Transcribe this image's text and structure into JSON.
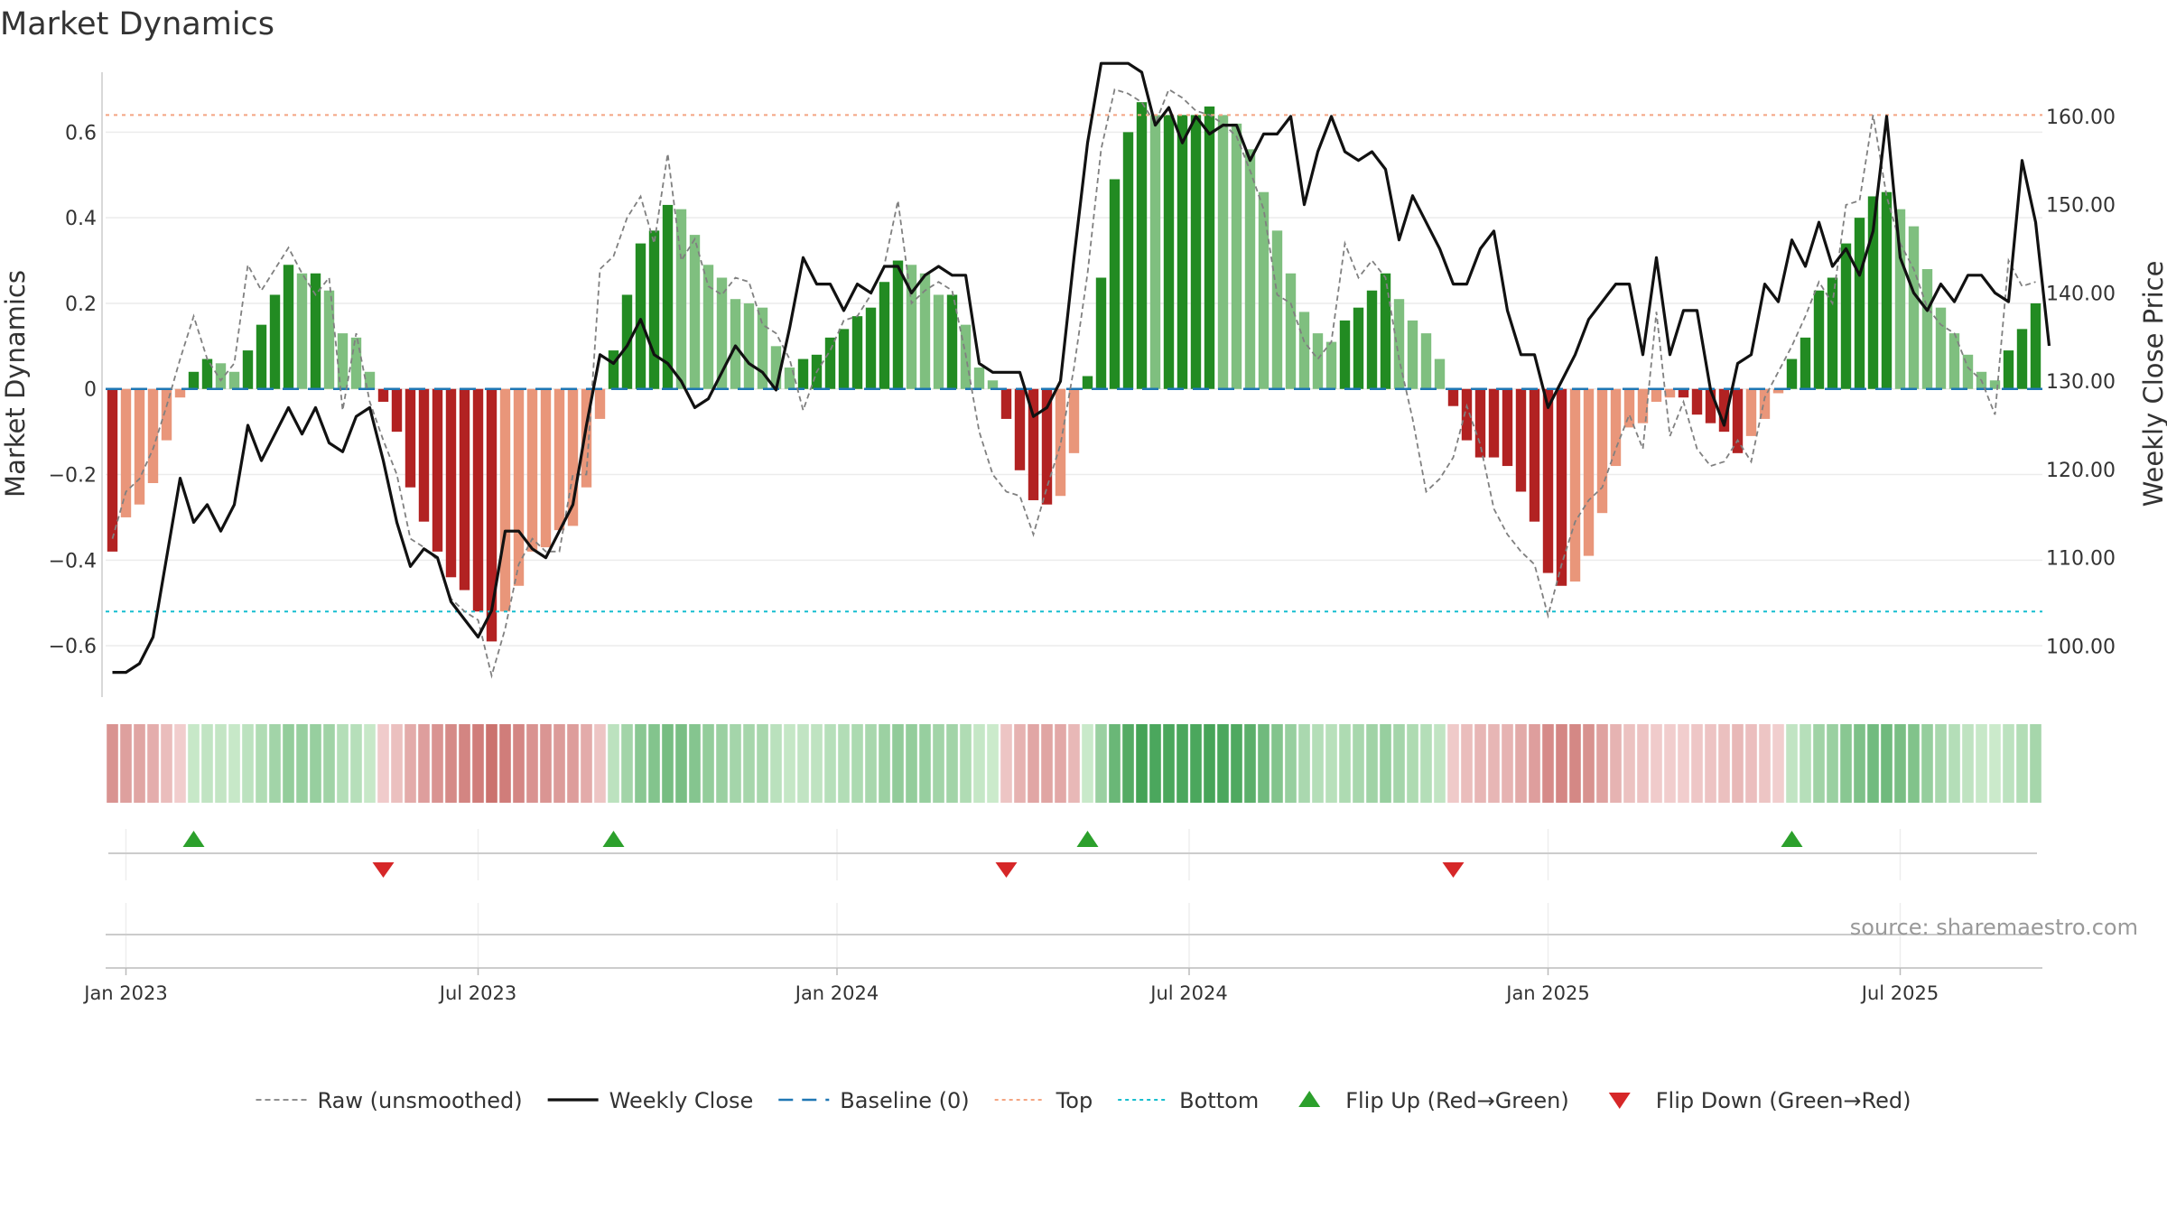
{
  "chart_data": {
    "title": "Market Dynamics",
    "type": "bar",
    "ylabel_left": "Market Dynamics",
    "ylabel_right": "Weekly Close Price",
    "ylim_left": [
      -0.72,
      0.74
    ],
    "ylim_right": [
      94.2,
      165
    ],
    "yticks_left": [
      0.6,
      0.4,
      0.2,
      0,
      -0.2,
      -0.4,
      -0.6
    ],
    "ytick_labels_left": [
      "0.6",
      "0.4",
      "0.2",
      "0",
      "−0.2",
      "−0.4",
      "−0.6"
    ],
    "yticks_right": [
      160,
      150,
      140,
      130,
      120,
      110,
      100
    ],
    "ytick_labels_right": [
      "160.00",
      "150.00",
      "140.00",
      "130.00",
      "120.00",
      "110.00",
      "100.00"
    ],
    "xticks": [
      {
        "label": "Jan 2023",
        "week": 1.5
      },
      {
        "label": "Jul 2023",
        "week": 27.5
      },
      {
        "label": "Jan 2024",
        "week": 54
      },
      {
        "label": "Jul 2024",
        "week": 80
      },
      {
        "label": "Jan 2025",
        "week": 106.5
      },
      {
        "label": "Jul 2025",
        "week": 132.5
      }
    ],
    "x_start": "Dec 2022",
    "top_level": 0.64,
    "bottom_level": -0.52,
    "baseline": 0,
    "grid": true,
    "legend_position": "bottom-center",
    "source_label": "source: sharemaestro.com",
    "smoothed": [
      -0.38,
      -0.3,
      -0.27,
      -0.22,
      -0.12,
      -0.02,
      0.04,
      0.07,
      0.06,
      0.04,
      0.09,
      0.15,
      0.22,
      0.29,
      0.27,
      0.27,
      0.23,
      0.13,
      0.12,
      0.04,
      -0.03,
      -0.1,
      -0.23,
      -0.31,
      -0.38,
      -0.44,
      -0.47,
      -0.52,
      -0.59,
      -0.52,
      -0.46,
      -0.38,
      -0.37,
      -0.33,
      -0.32,
      -0.23,
      -0.07,
      0.09,
      0.22,
      0.34,
      0.37,
      0.43,
      0.42,
      0.36,
      0.29,
      0.26,
      0.21,
      0.2,
      0.19,
      0.1,
      0.05,
      0.07,
      0.08,
      0.12,
      0.14,
      0.17,
      0.19,
      0.25,
      0.3,
      0.29,
      0.27,
      0.22,
      0.22,
      0.15,
      0.05,
      0.02,
      -0.07,
      -0.19,
      -0.26,
      -0.27,
      -0.25,
      -0.15,
      0.03,
      0.26,
      0.49,
      0.6,
      0.67,
      0.64,
      0.64,
      0.64,
      0.64,
      0.66,
      0.64,
      0.62,
      0.56,
      0.46,
      0.37,
      0.27,
      0.18,
      0.13,
      0.11,
      0.16,
      0.19,
      0.23,
      0.27,
      0.21,
      0.16,
      0.13,
      0.07,
      -0.04,
      -0.12,
      -0.16,
      -0.16,
      -0.18,
      -0.24,
      -0.31,
      -0.43,
      -0.46,
      -0.45,
      -0.39,
      -0.29,
      -0.18,
      -0.09,
      -0.08,
      -0.03,
      -0.02,
      -0.02,
      -0.06,
      -0.08,
      -0.1,
      -0.15,
      -0.11,
      -0.07,
      -0.01,
      0.07,
      0.12,
      0.23,
      0.26,
      0.34,
      0.4,
      0.45,
      0.46,
      0.42,
      0.38,
      0.28,
      0.19,
      0.13,
      0.08,
      0.04,
      0.02,
      0.09,
      0.14,
      0.2
    ],
    "raw": [
      -0.35,
      -0.24,
      -0.21,
      -0.14,
      -0.04,
      0.07,
      0.17,
      0.07,
      0.02,
      0.06,
      0.29,
      0.23,
      0.28,
      0.33,
      0.27,
      0.22,
      0.26,
      -0.05,
      0.13,
      -0.03,
      -0.12,
      -0.2,
      -0.35,
      -0.37,
      -0.4,
      -0.49,
      -0.52,
      -0.54,
      -0.67,
      -0.56,
      -0.41,
      -0.35,
      -0.38,
      -0.38,
      -0.2,
      -0.2,
      0.28,
      0.31,
      0.4,
      0.45,
      0.34,
      0.55,
      0.3,
      0.35,
      0.24,
      0.22,
      0.26,
      0.25,
      0.15,
      0.13,
      0.07,
      -0.05,
      0.04,
      0.09,
      0.16,
      0.17,
      0.22,
      0.29,
      0.44,
      0.2,
      0.23,
      0.25,
      0.23,
      0.08,
      -0.1,
      -0.2,
      -0.24,
      -0.25,
      -0.34,
      -0.23,
      -0.13,
      0.05,
      0.27,
      0.56,
      0.7,
      0.69,
      0.67,
      0.62,
      0.7,
      0.68,
      0.65,
      0.64,
      0.62,
      0.59,
      0.51,
      0.42,
      0.22,
      0.2,
      0.11,
      0.07,
      0.11,
      0.34,
      0.26,
      0.3,
      0.26,
      0.07,
      -0.07,
      -0.24,
      -0.21,
      -0.16,
      -0.04,
      -0.13,
      -0.28,
      -0.34,
      -0.38,
      -0.41,
      -0.53,
      -0.41,
      -0.31,
      -0.26,
      -0.23,
      -0.14,
      -0.06,
      -0.14,
      0.18,
      -0.11,
      -0.03,
      -0.14,
      -0.18,
      -0.17,
      -0.12,
      -0.17,
      -0.02,
      0.04,
      0.1,
      0.17,
      0.25,
      0.2,
      0.43,
      0.44,
      0.64,
      0.45,
      0.34,
      0.28,
      0.19,
      0.15,
      0.13,
      0.05,
      0.02,
      -0.06,
      0.3,
      0.24,
      0.25
    ],
    "close": [
      97,
      97,
      98,
      101,
      110,
      119,
      114,
      116,
      113,
      116,
      125,
      121,
      124,
      127,
      124,
      127,
      123,
      122,
      126,
      127,
      121,
      114,
      109,
      111,
      110,
      105,
      103,
      101,
      104,
      113,
      113,
      111,
      110,
      113,
      116,
      125,
      133,
      132,
      134,
      137,
      133,
      132,
      130,
      127,
      128,
      131,
      134,
      132,
      131,
      129,
      136,
      144,
      141,
      141,
      138,
      141,
      140,
      143,
      143,
      140,
      142,
      143,
      142,
      142,
      132,
      131,
      131,
      131,
      126,
      127,
      130,
      144,
      157,
      166,
      166,
      166,
      165,
      159,
      161,
      157,
      160,
      158,
      159,
      159,
      155,
      158,
      158,
      160,
      150,
      156,
      160,
      156,
      155,
      156,
      154,
      146,
      151,
      148,
      145,
      141,
      141,
      145,
      147,
      138,
      133,
      133,
      127,
      130,
      133,
      137,
      139,
      141,
      141,
      133,
      144,
      133,
      138,
      138,
      129,
      125,
      132,
      133,
      141,
      139,
      146,
      143,
      148,
      143,
      145,
      142,
      147,
      160,
      144,
      140,
      138,
      141,
      139,
      142,
      142,
      140,
      139,
      155,
      148,
      134
    ]
  },
  "legend": [
    {
      "label": "Raw (unsmoothed)",
      "icon": "dashed-line-icon",
      "color": "#808080"
    },
    {
      "label": "Weekly Close",
      "icon": "solid-line-icon",
      "color": "#111111"
    },
    {
      "label": "Baseline (0)",
      "icon": "dashed-line-icon",
      "color": "#1f77b4"
    },
    {
      "label": "Top",
      "icon": "dotted-line-icon",
      "color": "#f4a582"
    },
    {
      "label": "Bottom",
      "icon": "dotted-line-icon",
      "color": "#17becf"
    },
    {
      "label": "Flip Up (Red→Green)",
      "icon": "triangle-up-icon",
      "color": "#2ca02c"
    },
    {
      "label": "Flip Down (Green→Red)",
      "icon": "triangle-down-icon",
      "color": "#d62728"
    }
  ],
  "colors": {
    "pos_strong": "#228b22",
    "pos_weak": "#7fbf7f",
    "neg_strong": "#b22222",
    "neg_weak": "#e9967a"
  }
}
